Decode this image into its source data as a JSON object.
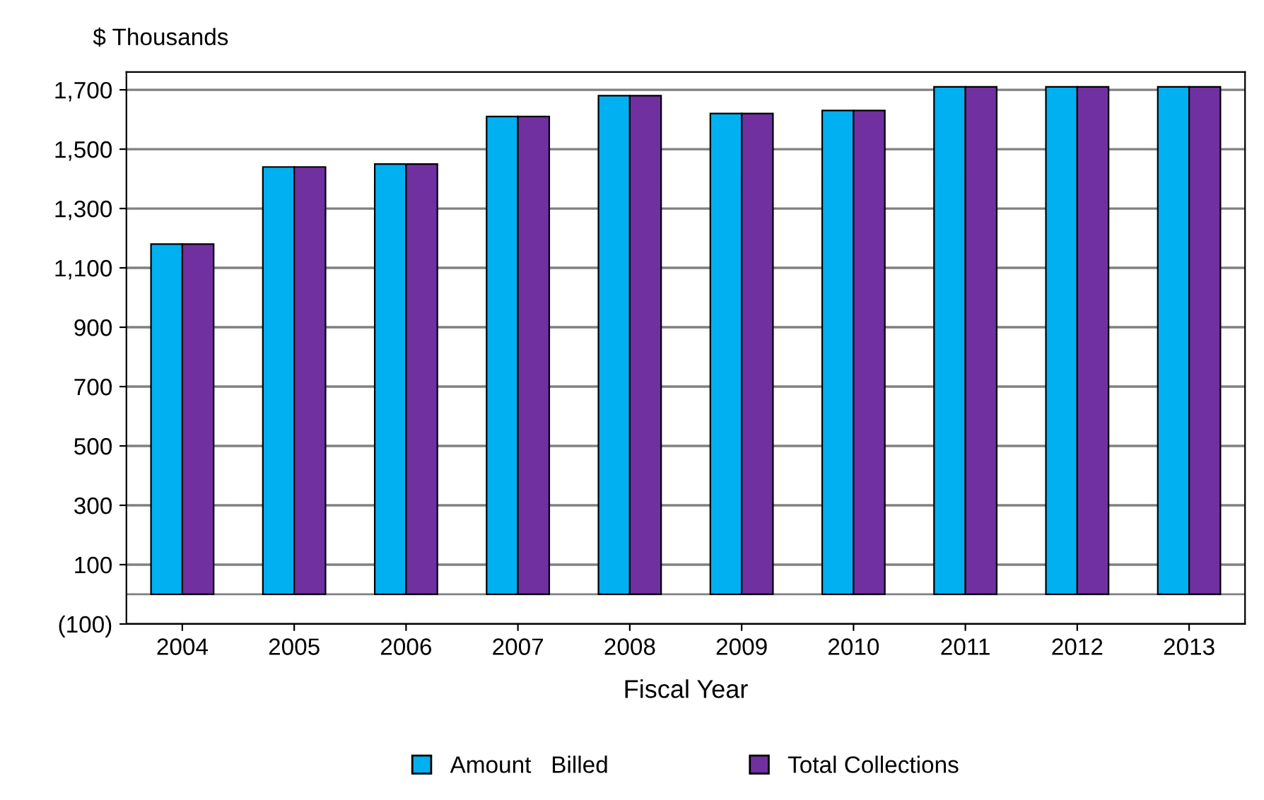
{
  "chart_data": {
    "type": "bar",
    "ylabel": "$ Thousands",
    "xlabel": "Fiscal Year",
    "categories": [
      "2004",
      "2005",
      "2006",
      "2007",
      "2008",
      "2009",
      "2010",
      "2011",
      "2012",
      "2013"
    ],
    "series": [
      {
        "name": "Amount   Billed",
        "color": "#00b0f0",
        "values": [
          1180,
          1440,
          1450,
          1610,
          1680,
          1620,
          1630,
          1710,
          1710,
          1710
        ]
      },
      {
        "name": "Total Collections",
        "color": "#7030a0",
        "values": [
          1180,
          1440,
          1450,
          1610,
          1680,
          1620,
          1630,
          1710,
          1710,
          1710
        ]
      }
    ],
    "ylim": [
      -100,
      1760
    ],
    "yticks": [
      {
        "value": -100,
        "label": "(100)"
      },
      100,
      {
        "value": 300,
        "label": "300"
      },
      {
        "value": 500,
        "label": "500"
      },
      {
        "value": 700,
        "label": "700"
      },
      {
        "value": 900,
        "label": "900"
      },
      {
        "value": 1100,
        "label": "1,100"
      },
      {
        "value": 1300,
        "label": "1,300"
      },
      {
        "value": 1500,
        "label": "1,500"
      },
      {
        "value": 1700,
        "label": "1,700"
      }
    ],
    "grid": "y",
    "legend": "bottom"
  }
}
